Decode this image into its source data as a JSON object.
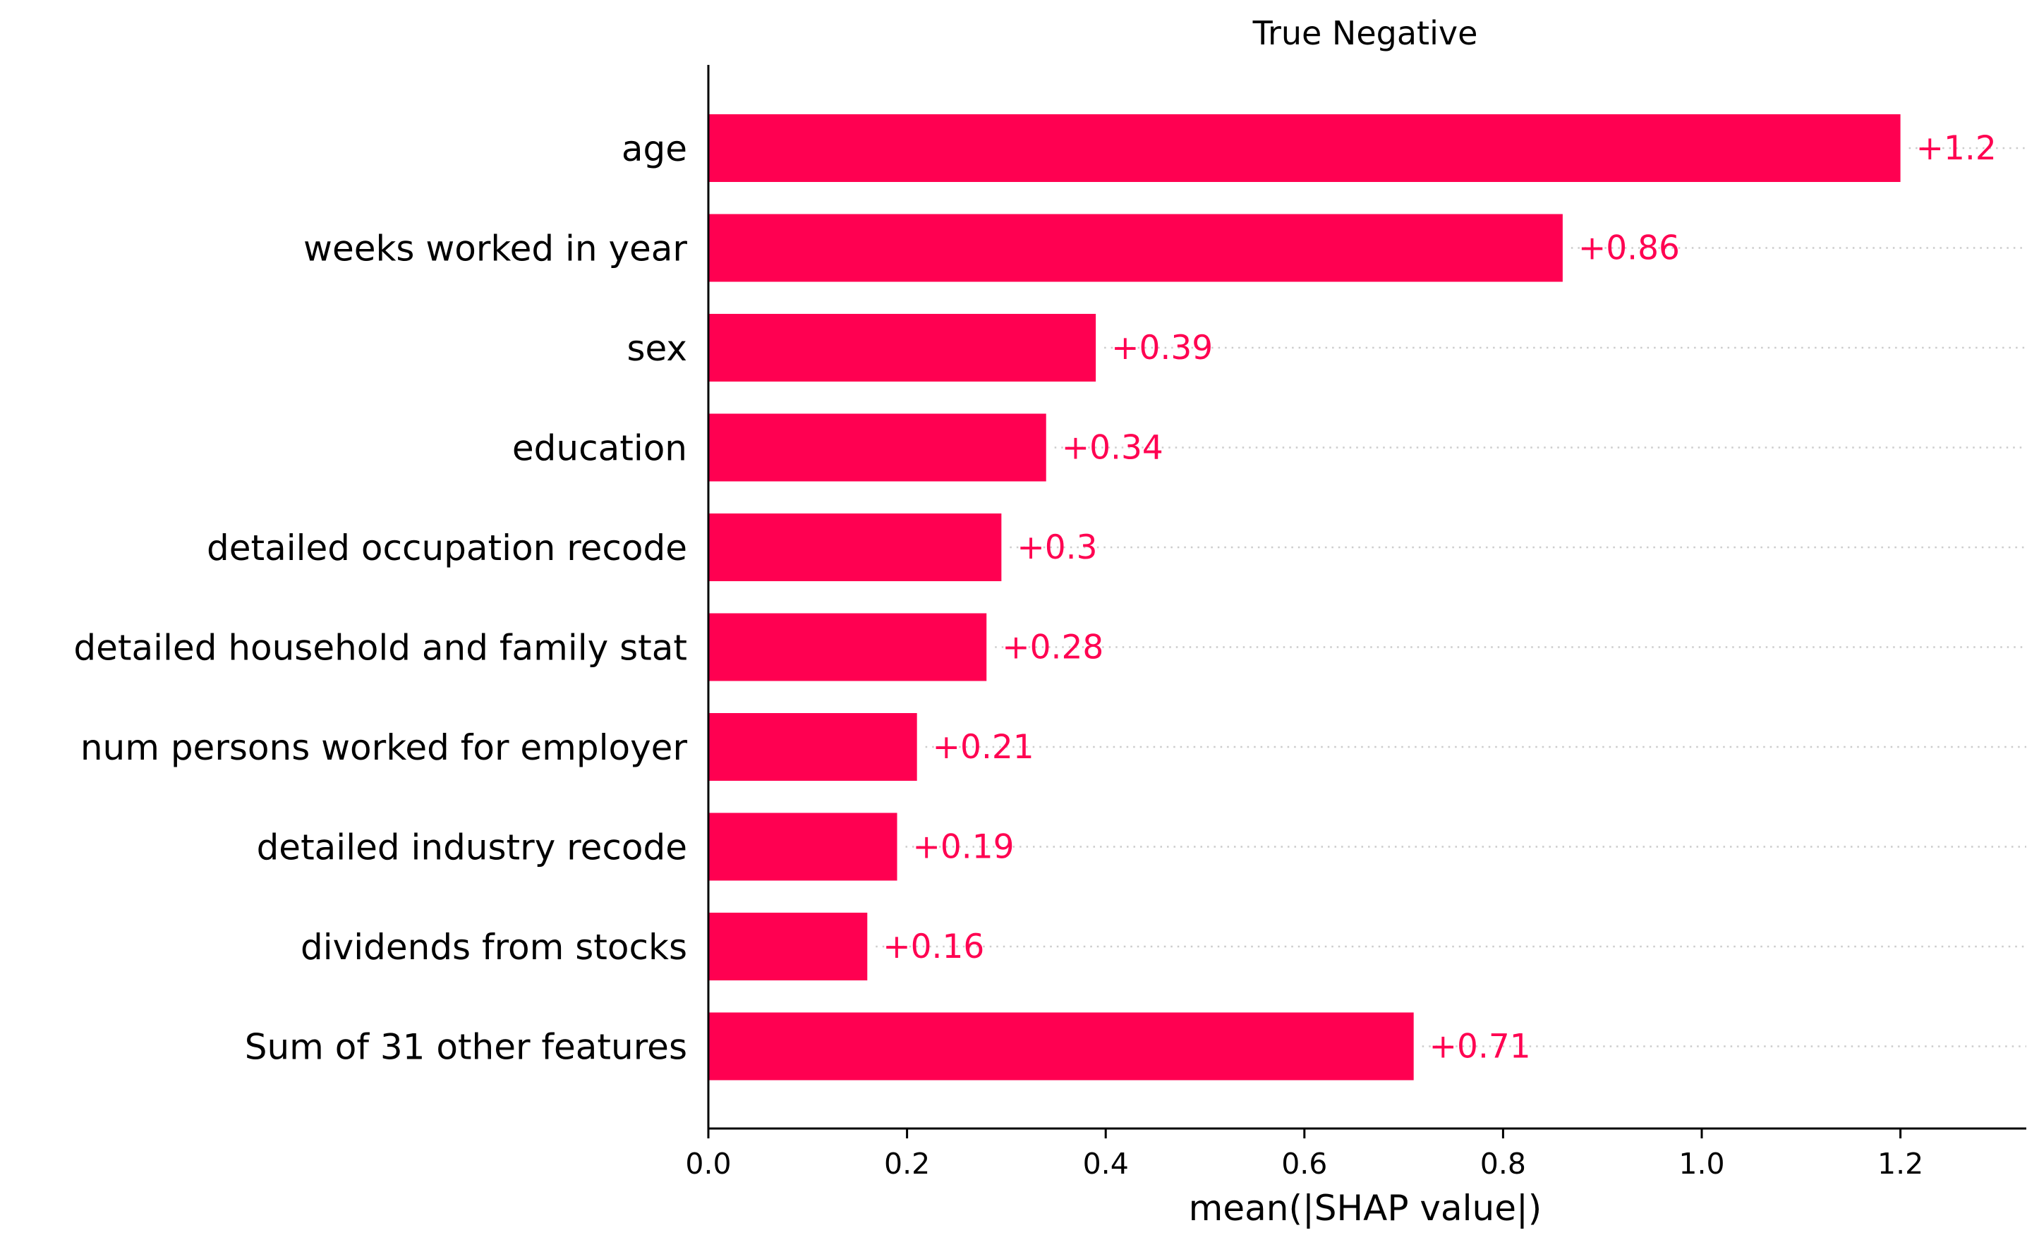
{
  "chart_data": {
    "type": "bar",
    "orientation": "horizontal",
    "title": "True Negative",
    "xlabel": "mean(|SHAP value|)",
    "ylabel": "",
    "xlim": [
      0,
      1.32
    ],
    "xticks": [
      "0.0",
      "0.2",
      "0.4",
      "0.6",
      "0.8",
      "1.0",
      "1.2"
    ],
    "grid": false,
    "bar_color": "#ff0051",
    "guide_color": "#cccccc",
    "categories": [
      "age",
      "weeks worked in year",
      "sex",
      "education",
      "detailed occupation recode",
      "detailed household and family stat",
      "num persons worked for employer",
      "detailed industry recode",
      "dividends from stocks",
      "Sum of 31 other features"
    ],
    "values": [
      1.2,
      0.86,
      0.39,
      0.34,
      0.295,
      0.28,
      0.21,
      0.19,
      0.16,
      0.71
    ],
    "value_labels": [
      "+1.2",
      "+0.86",
      "+0.39",
      "+0.34",
      "+0.3",
      "+0.28",
      "+0.21",
      "+0.19",
      "+0.16",
      "+0.71"
    ]
  }
}
